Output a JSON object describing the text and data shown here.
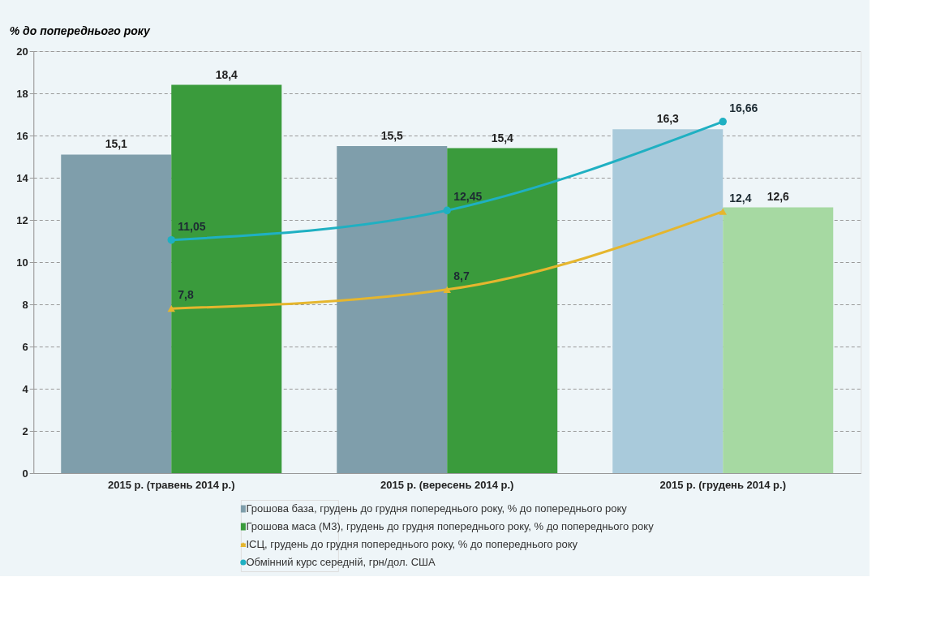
{
  "chart_data": {
    "type": "bar",
    "ylabel": "% до попереднього року",
    "categories": [
      "2015 р. (травень 2014 р.)",
      "2015 р. (вересень 2014 р.)",
      "2015 р. (грудень 2014 р.)"
    ],
    "series": [
      {
        "name": "Грошова база, грудень до грудня попереднього року, % до попереднього року",
        "color": "#7f9eab",
        "colors": [
          "#7f9eab",
          "#7f9eab",
          "#a9cadb"
        ],
        "values": [
          15.1,
          15.5,
          16.3
        ],
        "value_labels": [
          "15,1",
          "15,5",
          "16,3"
        ]
      },
      {
        "name": "Грошова маса (М3), грудень до грудня попереднього року, % до попереднього року",
        "color": "#3a9b3c",
        "colors": [
          "#3a9b3c",
          "#3a9b3c",
          "#a6d9a2"
        ],
        "values": [
          18.4,
          15.4,
          12.6
        ],
        "value_labels": [
          "18,4",
          "15,4",
          "12,6"
        ]
      },
      {
        "name": "ІСЦ, грудень до грудня попереднього року, % до попереднього року",
        "type": "line",
        "color": "#e5b62e",
        "marker": "triangle",
        "values": [
          7.8,
          8.7,
          12.4
        ],
        "value_labels": [
          "7,8",
          "8,7",
          "12,4"
        ]
      },
      {
        "name": "Обмінний курс середній, грн/дол. США",
        "type": "line",
        "color": "#1fb0c2",
        "marker": "circle",
        "values": [
          11.05,
          12.45,
          16.66
        ],
        "value_labels": [
          "11,05",
          "12,45",
          "16,66"
        ]
      }
    ],
    "ylim": [
      0,
      20
    ],
    "yticks": [
      0,
      2,
      4,
      6,
      8,
      10,
      12,
      14,
      16,
      18,
      20
    ],
    "grid": "y",
    "legend": "bottom"
  }
}
